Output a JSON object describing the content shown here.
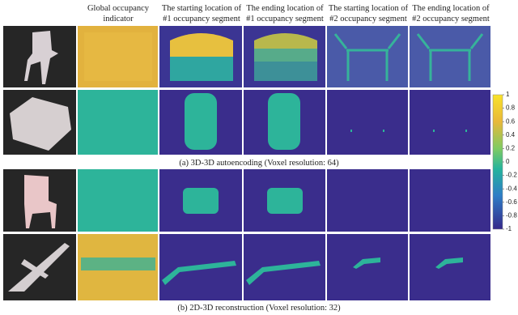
{
  "columns": [
    {
      "lines": [
        "Global occupancy",
        "indicator"
      ]
    },
    {
      "lines": [
        "The starting location of",
        "#1 occupancy segment"
      ]
    },
    {
      "lines": [
        "The ending location of",
        "#1 occupancy segment"
      ]
    },
    {
      "lines": [
        "The starting location of",
        "#2 occupancy segment"
      ]
    },
    {
      "lines": [
        "The ending location of",
        "#2 occupancy segment"
      ]
    }
  ],
  "captions": [
    "(a) 3D-3D autoencoding (Voxel resolution: 64)",
    "(b) 2D-3D reconstruction (Voxel resolution: 32)"
  ],
  "colorbar": {
    "ticks": [
      1,
      0.8,
      0.6,
      0.4,
      0.2,
      0,
      -0.2,
      -0.4,
      -0.6,
      -0.8,
      -1
    ]
  }
}
